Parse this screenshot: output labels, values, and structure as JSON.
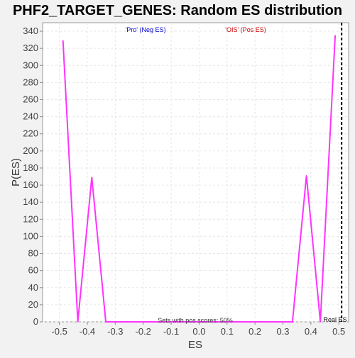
{
  "chart_data": {
    "type": "line",
    "title": "PHF2_TARGET_GENES: Random ES distribution",
    "xlabel": "ES",
    "ylabel": "P(ES)",
    "xlim": [
      -0.56,
      0.535
    ],
    "ylim": [
      0,
      350
    ],
    "x_ticks": [
      -0.5,
      -0.4,
      -0.3,
      -0.2,
      -0.1,
      0.0,
      0.1,
      0.2,
      0.3,
      0.4,
      0.5
    ],
    "x_tick_labels": [
      "-0.5",
      "-0.4",
      "-0.3",
      "-0.2",
      "-0.1",
      "0.0",
      "0.1",
      "0.2",
      "0.3",
      "0.4",
      "0.5"
    ],
    "y_ticks": [
      0,
      20,
      40,
      60,
      80,
      100,
      120,
      140,
      160,
      180,
      200,
      220,
      240,
      260,
      280,
      300,
      320,
      340
    ],
    "y_tick_labels": [
      "0",
      "20",
      "40",
      "60",
      "80",
      "100",
      "120",
      "140",
      "160",
      "180",
      "200",
      "220",
      "240",
      "260",
      "280",
      "300",
      "320",
      "340"
    ],
    "grid": true,
    "series": [
      {
        "name": "",
        "color": "#ff33ff",
        "x": [
          -0.487,
          -0.434,
          -0.384,
          -0.334,
          0.334,
          0.384,
          0.434,
          0.487
        ],
        "y": [
          329,
          0,
          169,
          0,
          0,
          171,
          0,
          335
        ]
      }
    ],
    "real_es": {
      "value": 0.51,
      "label": "Real ES",
      "color": "#000000"
    },
    "annotations": {
      "neg_label": "'Pro' (Neg ES)",
      "neg_color": "#0000cc",
      "pos_label": "'OIS' (Pos ES)",
      "pos_color": "#cc0000",
      "pos_scores_text": "Sets with pos scores: 50%"
    }
  }
}
